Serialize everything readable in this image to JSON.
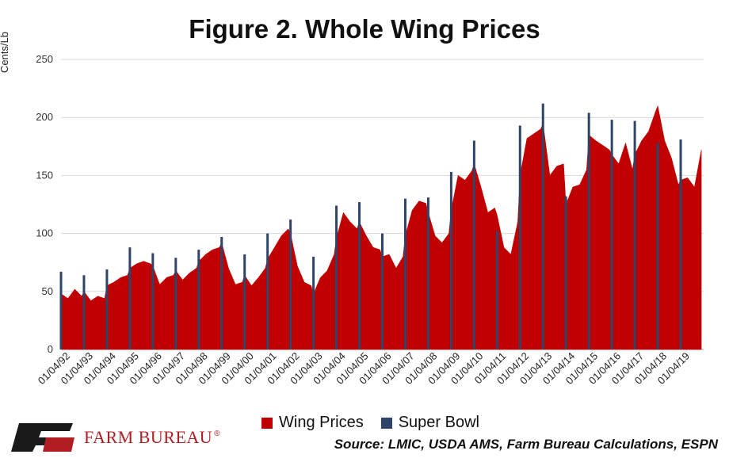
{
  "chart_data": {
    "type": "area",
    "title": "Figure 2. Whole Wing Prices",
    "ylabel": "Cents/Lb",
    "xlabel": "",
    "ylim": [
      0,
      250
    ],
    "yticks": [
      0,
      50,
      100,
      150,
      200,
      250
    ],
    "grid": true,
    "legend_position": "bottom",
    "x_tick_labels": [
      "01/04/92",
      "01/04/93",
      "01/04/94",
      "01/04/95",
      "01/04/96",
      "01/04/97",
      "01/04/98",
      "01/04/99",
      "01/04/00",
      "01/04/01",
      "01/04/02",
      "01/04/03",
      "01/04/04",
      "01/04/05",
      "01/04/06",
      "01/04/07",
      "01/04/08",
      "01/04/09",
      "01/04/10",
      "01/04/11",
      "01/04/12",
      "01/04/13",
      "01/04/14",
      "01/04/15",
      "01/04/16",
      "01/04/17",
      "01/04/18",
      "01/04/19"
    ],
    "series": [
      {
        "name": "Wing Prices",
        "color": "#c00000",
        "points": [
          [
            1992.0,
            48
          ],
          [
            1992.3,
            44
          ],
          [
            1992.6,
            52
          ],
          [
            1992.9,
            46
          ],
          [
            1993.0,
            50
          ],
          [
            1993.3,
            42
          ],
          [
            1993.6,
            46
          ],
          [
            1993.9,
            44
          ],
          [
            1994.0,
            55
          ],
          [
            1994.3,
            58
          ],
          [
            1994.6,
            62
          ],
          [
            1994.9,
            64
          ],
          [
            1995.0,
            70
          ],
          [
            1995.3,
            74
          ],
          [
            1995.6,
            76
          ],
          [
            1995.9,
            74
          ],
          [
            1996.0,
            72
          ],
          [
            1996.3,
            56
          ],
          [
            1996.6,
            62
          ],
          [
            1996.9,
            64
          ],
          [
            1997.0,
            68
          ],
          [
            1997.3,
            60
          ],
          [
            1997.6,
            66
          ],
          [
            1997.9,
            70
          ],
          [
            1998.0,
            76
          ],
          [
            1998.3,
            82
          ],
          [
            1998.6,
            86
          ],
          [
            1998.9,
            88
          ],
          [
            1999.0,
            92
          ],
          [
            1999.3,
            70
          ],
          [
            1999.6,
            56
          ],
          [
            1999.9,
            58
          ],
          [
            2000.0,
            64
          ],
          [
            2000.3,
            55
          ],
          [
            2000.6,
            62
          ],
          [
            2000.9,
            70
          ],
          [
            2001.0,
            78
          ],
          [
            2001.3,
            88
          ],
          [
            2001.6,
            98
          ],
          [
            2001.9,
            104
          ],
          [
            2002.0,
            100
          ],
          [
            2002.3,
            72
          ],
          [
            2002.6,
            58
          ],
          [
            2002.9,
            55
          ],
          [
            2003.0,
            48
          ],
          [
            2003.3,
            62
          ],
          [
            2003.6,
            68
          ],
          [
            2003.9,
            82
          ],
          [
            2004.0,
            96
          ],
          [
            2004.3,
            118
          ],
          [
            2004.6,
            110
          ],
          [
            2004.9,
            104
          ],
          [
            2005.0,
            110
          ],
          [
            2005.3,
            98
          ],
          [
            2005.6,
            88
          ],
          [
            2005.9,
            86
          ],
          [
            2006.0,
            80
          ],
          [
            2006.3,
            82
          ],
          [
            2006.6,
            70
          ],
          [
            2006.9,
            80
          ],
          [
            2007.0,
            98
          ],
          [
            2007.3,
            120
          ],
          [
            2007.6,
            128
          ],
          [
            2007.9,
            126
          ],
          [
            2008.0,
            118
          ],
          [
            2008.3,
            98
          ],
          [
            2008.6,
            92
          ],
          [
            2008.9,
            100
          ],
          [
            2009.0,
            120
          ],
          [
            2009.3,
            150
          ],
          [
            2009.6,
            146
          ],
          [
            2009.9,
            154
          ],
          [
            2010.0,
            160
          ],
          [
            2010.3,
            140
          ],
          [
            2010.6,
            118
          ],
          [
            2010.9,
            122
          ],
          [
            2011.0,
            116
          ],
          [
            2011.3,
            88
          ],
          [
            2011.6,
            82
          ],
          [
            2011.9,
            110
          ],
          [
            2012.0,
            150
          ],
          [
            2012.3,
            182
          ],
          [
            2012.6,
            186
          ],
          [
            2012.9,
            190
          ],
          [
            2013.0,
            195
          ],
          [
            2013.3,
            150
          ],
          [
            2013.6,
            158
          ],
          [
            2013.9,
            160
          ],
          [
            2014.0,
            125
          ],
          [
            2014.3,
            140
          ],
          [
            2014.6,
            142
          ],
          [
            2014.9,
            155
          ],
          [
            2015.0,
            185
          ],
          [
            2015.3,
            180
          ],
          [
            2015.6,
            176
          ],
          [
            2015.9,
            172
          ],
          [
            2016.0,
            168
          ],
          [
            2016.3,
            160
          ],
          [
            2016.6,
            178
          ],
          [
            2016.9,
            155
          ],
          [
            2017.0,
            168
          ],
          [
            2017.3,
            180
          ],
          [
            2017.6,
            188
          ],
          [
            2017.9,
            205
          ],
          [
            2018.0,
            210
          ],
          [
            2018.3,
            180
          ],
          [
            2018.6,
            165
          ],
          [
            2018.9,
            142
          ],
          [
            2019.0,
            146
          ],
          [
            2019.3,
            148
          ],
          [
            2019.6,
            140
          ],
          [
            2019.9,
            172
          ]
        ]
      },
      {
        "name": "Super Bowl",
        "color": "#2e4468",
        "points": [
          [
            1992.0,
            67
          ],
          [
            1993.0,
            64
          ],
          [
            1994.0,
            69
          ],
          [
            1995.0,
            88
          ],
          [
            1996.0,
            83
          ],
          [
            1997.0,
            79
          ],
          [
            1998.0,
            86
          ],
          [
            1999.0,
            97
          ],
          [
            2000.0,
            82
          ],
          [
            2001.0,
            100
          ],
          [
            2002.0,
            112
          ],
          [
            2003.0,
            80
          ],
          [
            2004.0,
            124
          ],
          [
            2005.0,
            127
          ],
          [
            2006.0,
            100
          ],
          [
            2007.0,
            130
          ],
          [
            2008.0,
            131
          ],
          [
            2009.0,
            153
          ],
          [
            2010.0,
            180
          ],
          [
            2011.0,
            102
          ],
          [
            2012.0,
            193
          ],
          [
            2013.0,
            212
          ],
          [
            2014.0,
            132
          ],
          [
            2015.0,
            204
          ],
          [
            2016.0,
            198
          ],
          [
            2017.0,
            197
          ],
          [
            2018.0,
            178
          ],
          [
            2019.0,
            181
          ]
        ]
      }
    ]
  },
  "legend": {
    "wing_label": "Wing Prices",
    "superbowl_label": "Super Bowl",
    "wing_color": "#c00000",
    "superbowl_color": "#2e4468"
  },
  "footer": {
    "source": "Source: LMIC, USDA AMS, Farm Bureau Calculations, ESPN",
    "logo_text": "FARM BUREAU",
    "logo_mark": "FB",
    "logo_reg": "®"
  }
}
